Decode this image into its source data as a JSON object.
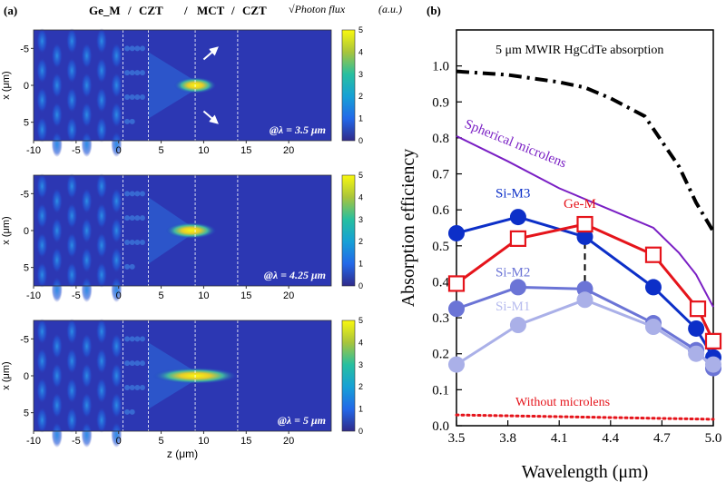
{
  "panel_a": {
    "label": "(a)",
    "header_layers": [
      "Ge_M",
      "CZT",
      "MCT",
      "CZT"
    ],
    "header_sep": "/",
    "flux_label": "√Photon flux",
    "flux_units": "(a.u.)",
    "x_axis_label": "z (μm)",
    "y_axis_label": "x (μm)",
    "arrow_color": "#ffffff",
    "interface_z": [
      0.5,
      3.5,
      9,
      14
    ]
  },
  "panel_b": {
    "label": "(b)"
  },
  "chart_data": [
    {
      "type": "heatmap",
      "title": "@λ = 3.5 μm",
      "xlabel": "",
      "ylabel": "x (μm)",
      "xlim": [
        -10,
        25
      ],
      "ylim": [
        -7.5,
        7.5
      ],
      "x_ticks": [
        -10,
        -5,
        0,
        5,
        10,
        15,
        20
      ],
      "y_ticks": [
        -5,
        0,
        5
      ],
      "colorbar_range": [
        0,
        5
      ],
      "colorbar_ticks": [
        0,
        1,
        2,
        3,
        4,
        5
      ],
      "focus_z": 9,
      "focus_width": 2.5,
      "annotation_arrows": 2
    },
    {
      "type": "heatmap",
      "title": "@λ = 4.25 μm",
      "xlabel": "",
      "ylabel": "x (μm)",
      "xlim": [
        -10,
        25
      ],
      "ylim": [
        -7.5,
        7.5
      ],
      "x_ticks": [
        -10,
        -5,
        0,
        5,
        10,
        15,
        20
      ],
      "y_ticks": [
        -5,
        0,
        5
      ],
      "colorbar_range": [
        0,
        5
      ],
      "colorbar_ticks": [
        0,
        1,
        2,
        3,
        4,
        5
      ],
      "focus_z": 8.5,
      "focus_width": 3,
      "annotation_arrows": 0
    },
    {
      "type": "heatmap",
      "title": "@λ = 5 μm",
      "xlabel": "z (μm)",
      "ylabel": "x (μm)",
      "xlim": [
        -10,
        25
      ],
      "ylim": [
        -7.5,
        7.5
      ],
      "x_ticks": [
        -10,
        -5,
        0,
        5,
        10,
        15,
        20
      ],
      "y_ticks": [
        -5,
        0,
        5
      ],
      "colorbar_range": [
        0,
        5
      ],
      "colorbar_ticks": [
        0,
        1,
        2,
        3,
        4,
        5
      ],
      "focus_z": 9,
      "focus_width": 5,
      "annotation_arrows": 0
    },
    {
      "type": "line",
      "title": "",
      "xlabel": "Wavelength (μm)",
      "ylabel": "Absorption efficiency",
      "xlim": [
        3.5,
        5.0
      ],
      "ylim": [
        0.0,
        1.1
      ],
      "x_ticks": [
        3.5,
        3.8,
        4.1,
        4.4,
        4.7,
        5.0
      ],
      "y_ticks": [
        0.0,
        0.1,
        0.2,
        0.3,
        0.4,
        0.5,
        0.6,
        0.7,
        0.8,
        0.9,
        1.0
      ],
      "vertical_marker": {
        "x": 4.25,
        "y_from": 0.33,
        "y_to": 0.57
      },
      "series": [
        {
          "name": "5 μm MWIR HgCdTe absorption",
          "color": "#000000",
          "style": "dashdot",
          "marker": "none",
          "x": [
            3.5,
            3.8,
            4.1,
            4.25,
            4.4,
            4.6,
            4.8,
            4.9,
            5.0
          ],
          "y": [
            0.985,
            0.975,
            0.955,
            0.94,
            0.91,
            0.86,
            0.72,
            0.62,
            0.54
          ]
        },
        {
          "name": "Spherical microlens",
          "color": "#7a1fc4",
          "style": "solid",
          "marker": "none",
          "x": [
            3.5,
            3.8,
            4.1,
            4.4,
            4.65,
            4.8,
            4.9,
            5.0
          ],
          "y": [
            0.805,
            0.735,
            0.66,
            0.6,
            0.55,
            0.48,
            0.42,
            0.33
          ]
        },
        {
          "name": "Si-M3",
          "color": "#0c2fc8",
          "style": "solid",
          "marker": "circle",
          "x": [
            3.5,
            3.86,
            4.25,
            4.65,
            4.9,
            5.0
          ],
          "y": [
            0.535,
            0.58,
            0.525,
            0.385,
            0.27,
            0.19
          ]
        },
        {
          "name": "Ge-M",
          "color": "#e5141b",
          "style": "solid",
          "marker": "square",
          "x": [
            3.5,
            3.86,
            4.25,
            4.65,
            4.91,
            5.0
          ],
          "y": [
            0.395,
            0.52,
            0.56,
            0.475,
            0.325,
            0.235
          ]
        },
        {
          "name": "Si-M2",
          "color": "#6b74d6",
          "style": "solid",
          "marker": "circle",
          "x": [
            3.5,
            3.86,
            4.25,
            4.65,
            4.9,
            5.0
          ],
          "y": [
            0.325,
            0.385,
            0.38,
            0.285,
            0.21,
            0.16
          ]
        },
        {
          "name": "Si-M1",
          "color": "#aab0e8",
          "style": "solid",
          "marker": "circle",
          "x": [
            3.5,
            3.86,
            4.25,
            4.65,
            4.9,
            5.0
          ],
          "y": [
            0.17,
            0.28,
            0.35,
            0.275,
            0.2,
            0.17
          ]
        },
        {
          "name": "Without microlens",
          "color": "#e5141b",
          "style": "dotted",
          "marker": "none",
          "x": [
            3.5,
            5.0
          ],
          "y": [
            0.03,
            0.018
          ]
        }
      ]
    }
  ]
}
